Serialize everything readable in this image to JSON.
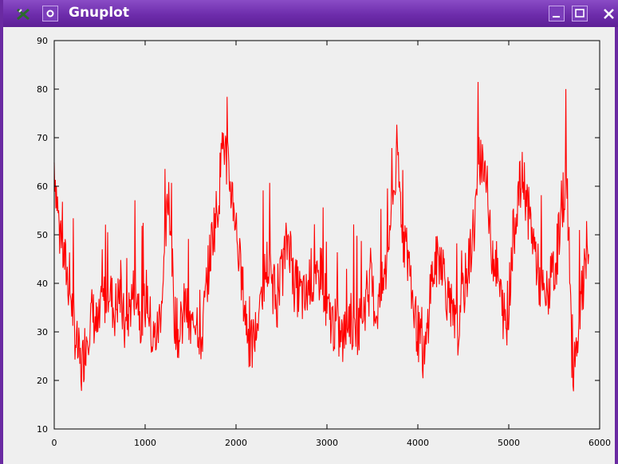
{
  "window": {
    "title": "Gnuplot"
  },
  "icons": {
    "app": "gnuplot-app-icon",
    "menu": "window-menu-icon",
    "minimize": "minimize-icon",
    "maximize": "maximize-icon",
    "close": "close-icon"
  },
  "colors": {
    "titlebar": "#6d2cab",
    "series": "#ff0000",
    "background": "#efefef"
  },
  "chart_data": {
    "type": "line",
    "title": "",
    "xlabel": "",
    "ylabel": "",
    "xlim": [
      0,
      6000
    ],
    "ylim": [
      10,
      90
    ],
    "x_ticks": [
      "0",
      "1000",
      "2000",
      "3000",
      "4000",
      "5000",
      "6000"
    ],
    "y_ticks": [
      "10",
      "20",
      "30",
      "40",
      "50",
      "60",
      "70",
      "80",
      "90"
    ],
    "grid": false,
    "legend": "none",
    "series": [
      {
        "color": "#ff0000",
        "x": [
          0,
          60,
          120,
          180,
          240,
          300,
          360,
          420,
          480,
          540,
          600,
          660,
          720,
          780,
          840,
          900,
          960,
          1020,
          1080,
          1140,
          1200,
          1260,
          1320,
          1380,
          1440,
          1500,
          1560,
          1620,
          1680,
          1740,
          1800,
          1860,
          1920,
          1980,
          2040,
          2100,
          2160,
          2220,
          2280,
          2340,
          2400,
          2460,
          2520,
          2580,
          2640,
          2700,
          2760,
          2820,
          2880,
          2940,
          3000,
          3060,
          3120,
          3180,
          3240,
          3300,
          3360,
          3420,
          3480,
          3540,
          3600,
          3660,
          3720,
          3780,
          3840,
          3900,
          3960,
          4020,
          4080,
          4140,
          4200,
          4260,
          4320,
          4380,
          4440,
          4500,
          4560,
          4620,
          4680,
          4740,
          4800,
          4860,
          4920,
          4980,
          5040,
          5100,
          5160,
          5220,
          5280,
          5340,
          5400,
          5460,
          5520,
          5580,
          5640,
          5700,
          5760,
          5820,
          5880
        ],
        "y": [
          65,
          50,
          44,
          38,
          28,
          22,
          30,
          34,
          30,
          36,
          40,
          34,
          38,
          30,
          36,
          40,
          32,
          38,
          28,
          30,
          40,
          60,
          34,
          28,
          36,
          30,
          34,
          28,
          40,
          50,
          56,
          70,
          62,
          56,
          44,
          34,
          26,
          30,
          38,
          44,
          40,
          36,
          44,
          50,
          40,
          38,
          36,
          42,
          38,
          44,
          34,
          32,
          30,
          28,
          34,
          30,
          32,
          36,
          40,
          34,
          38,
          44,
          58,
          64,
          50,
          44,
          34,
          28,
          24,
          40,
          44,
          46,
          38,
          32,
          30,
          38,
          44,
          52,
          66,
          64,
          48,
          44,
          36,
          30,
          48,
          58,
          62,
          54,
          48,
          40,
          36,
          40,
          44,
          56,
          62,
          22,
          30,
          40,
          46
        ]
      }
    ]
  }
}
